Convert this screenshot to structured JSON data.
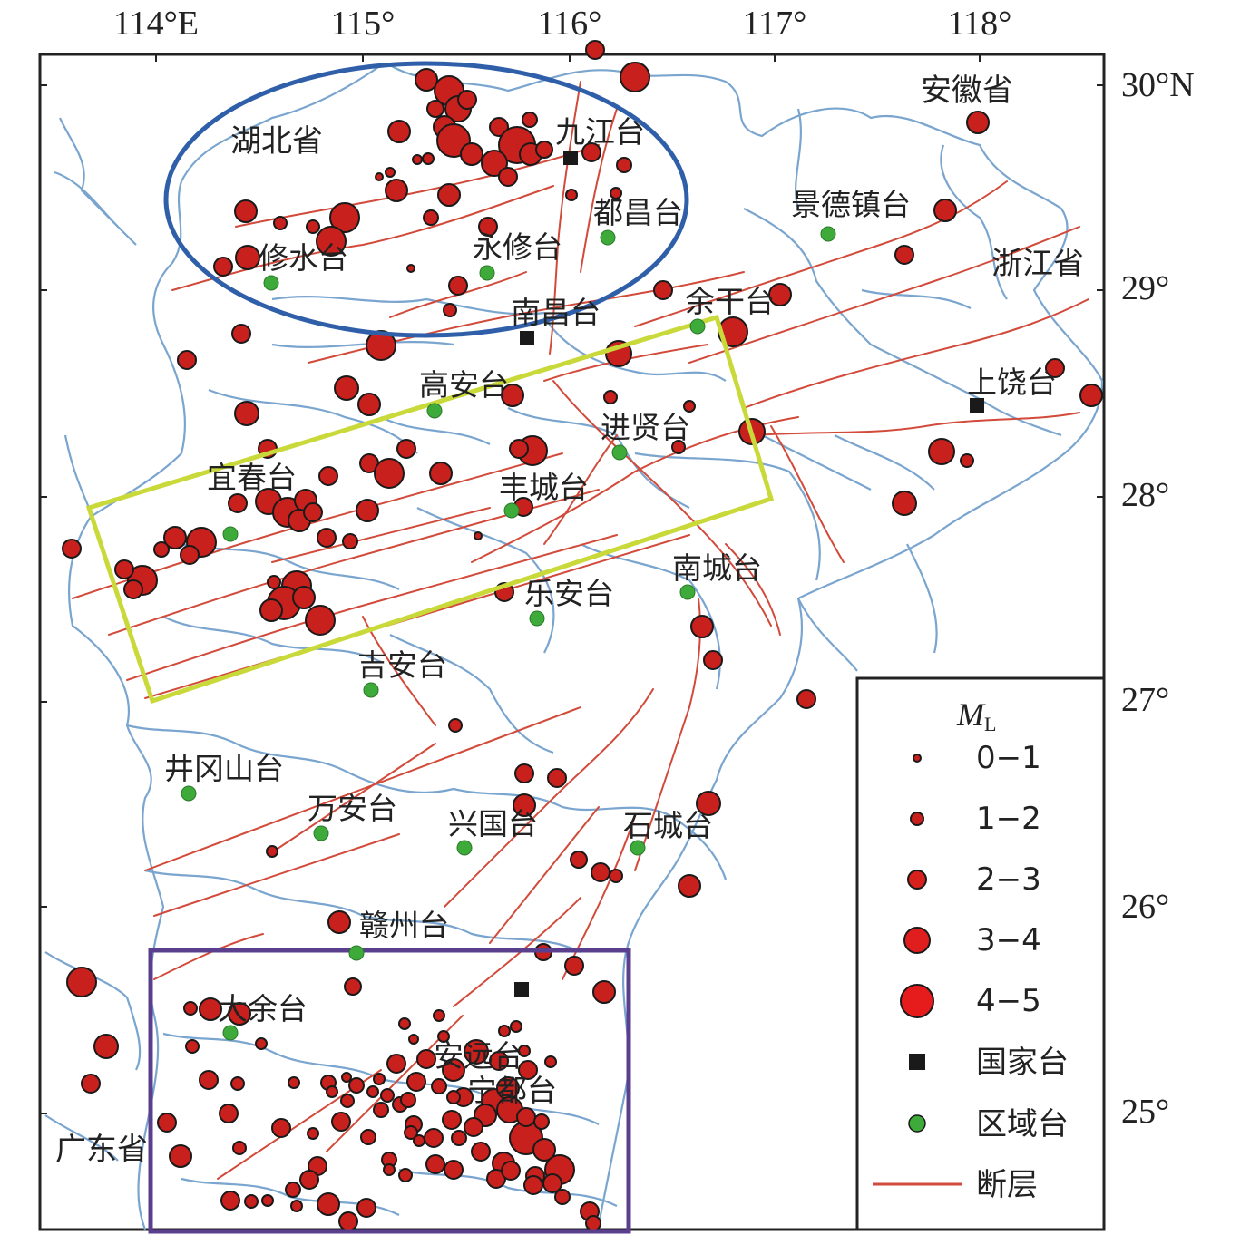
{
  "map": {
    "lon_labels": [
      "114°E",
      "115°",
      "116°",
      "117°",
      "118°"
    ],
    "lat_labels": [
      "30°N",
      "29°",
      "28°",
      "27°",
      "26°",
      "25°"
    ],
    "provinces": [
      "安徽省",
      "湖北省",
      "浙江省",
      "广东省"
    ],
    "national_stations": [
      "九江台",
      "南昌台",
      "上饶台",
      "宁都台"
    ],
    "regional_stations": [
      "景德镇台",
      "都昌台",
      "修水台",
      "永修台",
      "余干台",
      "高安台",
      "进贤台",
      "宜春台",
      "丰城台",
      "南城台",
      "乐安台",
      "吉安台",
      "井冈山台",
      "万安台",
      "兴国台",
      "石城台",
      "赣州台",
      "大余台",
      "安远台"
    ],
    "legend": {
      "title_main": "M",
      "title_sub": "L",
      "magnitude_bins": [
        "0−1",
        "1−2",
        "2−3",
        "3−4",
        "4−5"
      ],
      "national": "国家台",
      "regional": "区域台",
      "fault": "断层"
    },
    "colors": {
      "event_fill": "#c8201c",
      "event_stroke": "#1a1a1a",
      "fault": "#d24a3a",
      "boundary": "#7aa5cf",
      "national": "#1a1a1a",
      "regional": "#3daa3a",
      "ellipse": "#2f5fa8",
      "north_box": "#c9d93a",
      "south_box": "#5b3f8f"
    }
  }
}
